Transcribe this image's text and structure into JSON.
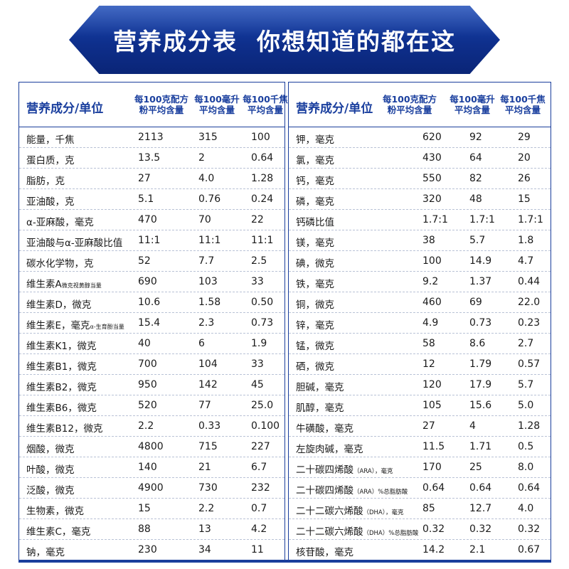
{
  "banner": {
    "title": "营养成分表  你想知道的都在这"
  },
  "left": {
    "header": {
      "name": "营养成分/单位",
      "col1": [
        "每100克配方",
        "粉平均含量"
      ],
      "col2": [
        "每100毫升",
        "平均含量"
      ],
      "col3": [
        "每100千焦",
        "平均含量"
      ]
    },
    "rows": [
      {
        "name": "能量，千焦",
        "v1": "2113",
        "v2": "315",
        "v3": "100"
      },
      {
        "name": "蛋白质，克",
        "v1": "13.5",
        "v2": "2",
        "v3": "0.64"
      },
      {
        "name": "脂肪，克",
        "v1": "27",
        "v2": "4.0",
        "v3": "1.28"
      },
      {
        "name": "亚油酸，克",
        "v1": "5.1",
        "v2": "0.76",
        "v3": "0.24"
      },
      {
        "name": "α-亚麻酸，毫克",
        "v1": "470",
        "v2": "70",
        "v3": "22"
      },
      {
        "name": "亚油酸与α-亚麻酸比值",
        "v1": "11:1",
        "v2": "11:1",
        "v3": "11:1"
      },
      {
        "name": "碳水化学物，克",
        "v1": "52",
        "v2": "7.7",
        "v3": "2.5"
      },
      {
        "name": "维生素A",
        "sub": "微克视黄醇当量",
        "v1": "690",
        "v2": "103",
        "v3": "33"
      },
      {
        "name": "维生素D，微克",
        "v1": "10.6",
        "v2": "1.58",
        "v3": "0.50"
      },
      {
        "name": "维生素E，毫克",
        "sub": "α-生育酚当量",
        "v1": "15.4",
        "v2": "2.3",
        "v3": "0.73"
      },
      {
        "name": "维生素K1，微克",
        "v1": "40",
        "v2": "6",
        "v3": "1.9"
      },
      {
        "name": "维生素B1，微克",
        "v1": "700",
        "v2": "104",
        "v3": "33"
      },
      {
        "name": "维生素B2，微克",
        "v1": "950",
        "v2": "142",
        "v3": "45"
      },
      {
        "name": "维生素B6，微克",
        "v1": "520",
        "v2": "77",
        "v3": "25.0"
      },
      {
        "name": "维生素B12，微克",
        "v1": "2.2",
        "v2": "0.33",
        "v3": "0.100"
      },
      {
        "name": "烟酸，微克",
        "v1": "4800",
        "v2": "715",
        "v3": "227"
      },
      {
        "name": "叶酸，微克",
        "v1": "140",
        "v2": "21",
        "v3": "6.7"
      },
      {
        "name": "泛酸，微克",
        "v1": "4900",
        "v2": "730",
        "v3": "232"
      },
      {
        "name": "生物素，微克",
        "v1": "15",
        "v2": "2.2",
        "v3": "0.7"
      },
      {
        "name": "维生素C，毫克",
        "v1": "88",
        "v2": "13",
        "v3": "4.2"
      },
      {
        "name": "钠，毫克",
        "v1": "230",
        "v2": "34",
        "v3": "11"
      }
    ]
  },
  "right": {
    "header": {
      "name": "营养成分/单位",
      "col1": [
        "每100克配方",
        "粉平均含量"
      ],
      "col2": [
        "每100毫升",
        "平均含量"
      ],
      "col3": [
        "每100千焦",
        "平均含量"
      ]
    },
    "rows": [
      {
        "name": "钾，毫克",
        "v1": "620",
        "v2": "92",
        "v3": "29"
      },
      {
        "name": "氯，毫克",
        "v1": "430",
        "v2": "64",
        "v3": "20"
      },
      {
        "name": "钙，毫克",
        "v1": "550",
        "v2": "82",
        "v3": "26"
      },
      {
        "name": "磷，毫克",
        "v1": "320",
        "v2": "48",
        "v3": "15"
      },
      {
        "name": "钙磷比值",
        "v1": "1.7:1",
        "v2": "1.7:1",
        "v3": "1.7:1"
      },
      {
        "name": "镁，毫克",
        "v1": "38",
        "v2": "5.7",
        "v3": "1.8"
      },
      {
        "name": "碘，微克",
        "v1": "100",
        "v2": "14.9",
        "v3": "4.7"
      },
      {
        "name": "铁，毫克",
        "v1": "9.2",
        "v2": "1.37",
        "v3": "0.44"
      },
      {
        "name": "铜，微克",
        "v1": "460",
        "v2": "69",
        "v3": "22.0"
      },
      {
        "name": "锌，毫克",
        "v1": "4.9",
        "v2": "0.73",
        "v3": "0.23"
      },
      {
        "name": "锰，微克",
        "v1": "58",
        "v2": "8.6",
        "v3": "2.7"
      },
      {
        "name": "硒，微克",
        "v1": "12",
        "v2": "1.79",
        "v3": "0.57"
      },
      {
        "name": "胆碱，毫克",
        "v1": "120",
        "v2": "17.9",
        "v3": "5.7"
      },
      {
        "name": "肌醇，毫克",
        "v1": "105",
        "v2": "15.6",
        "v3": "5.0"
      },
      {
        "name": "牛磺酸，毫克",
        "v1": "27",
        "v2": "4",
        "v3": "1.28"
      },
      {
        "name": "左旋肉碱，毫克",
        "v1": "11.5",
        "v2": "1.71",
        "v3": "0.5"
      },
      {
        "name": "二十碳四烯酸",
        "sub": "（ARA），毫克",
        "v1": "170",
        "v2": "25",
        "v3": "8.0"
      },
      {
        "name": "二十碳四烯酸",
        "sub": "（ARA）%总脂肪酸",
        "v1": "0.64",
        "v2": "0.64",
        "v3": "0.64"
      },
      {
        "name": "二十二碳六烯酸",
        "sub": "（DHA），毫克",
        "v1": "85",
        "v2": "12.7",
        "v3": "4.0"
      },
      {
        "name": "二十二碳六烯酸",
        "sub": "（DHA）%总脂肪酸",
        "v1": "0.32",
        "v2": "0.32",
        "v3": "0.32"
      },
      {
        "name": "核苷酸，毫克",
        "v1": "14.2",
        "v2": "2.1",
        "v3": "0.67"
      }
    ]
  }
}
